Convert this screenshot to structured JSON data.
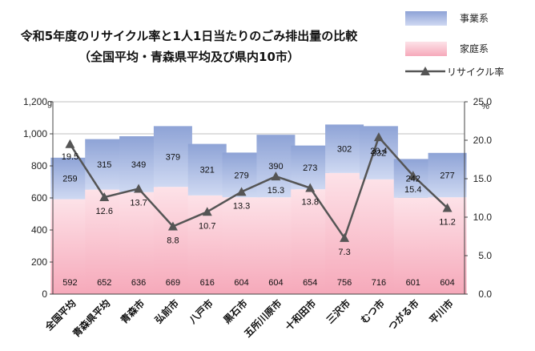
{
  "chart_data": {
    "type": "bar",
    "title_line1": "令和5年度のリサイクル率と1人1日当たりのごみ排出量の比較",
    "title_line2": "（全国平均・青森県平均及び県内10市）",
    "left_unit": "g",
    "right_unit": "%",
    "categories": [
      "全国平均",
      "青森県平均",
      "青森市",
      "弘前市",
      "八戸市",
      "黒石市",
      "五所川原市",
      "十和田市",
      "三沢市",
      "むつ市",
      "つがる市",
      "平川市"
    ],
    "series": [
      {
        "name": "家庭系",
        "kind": "bar",
        "axis": "left",
        "color": "#f9c0cc",
        "values": [
          592,
          652,
          636,
          669,
          616,
          604,
          604,
          654,
          756,
          716,
          601,
          604
        ]
      },
      {
        "name": "事業系",
        "kind": "bar",
        "axis": "left",
        "color": "#8fa6d8",
        "values": [
          259,
          315,
          349,
          379,
          321,
          279,
          390,
          273,
          302,
          332,
          242,
          277
        ]
      },
      {
        "name": "リサイクル率",
        "kind": "line",
        "axis": "right",
        "color": "#555555",
        "values": [
          19.5,
          12.6,
          13.7,
          8.8,
          10.7,
          13.3,
          15.3,
          13.8,
          7.3,
          20.4,
          15.4,
          11.2
        ]
      }
    ],
    "y_left": {
      "min": 0,
      "max": 1200,
      "ticks": [
        "0",
        "200",
        "400",
        "600",
        "800",
        "1,000",
        "1,200"
      ]
    },
    "y_right": {
      "min": 0,
      "max": 25,
      "ticks": [
        "0.0",
        "5.0",
        "10.0",
        "15.0",
        "20.0",
        "25.0"
      ]
    },
    "stacked": true,
    "legend_position": "top-right",
    "grid": true
  }
}
